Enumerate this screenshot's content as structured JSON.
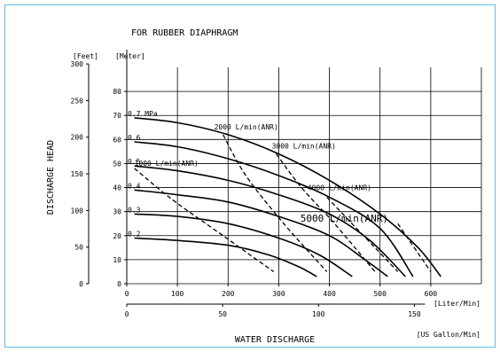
{
  "chart_data": {
    "type": "line",
    "title": "FOR RUBBER DIAPHRAGM",
    "xlabel": "WATER  DISCHARGE",
    "ylabel": "DISCHARGE  HEAD",
    "x_primary_unit": "[Liter/Min]",
    "x_secondary_unit": "[US Gallon/Min]",
    "y_feet_unit": "[Feet]",
    "y_meter_unit": "[Meter]",
    "x_primary_ticks": [
      "0",
      "100",
      "200",
      "300",
      "400",
      "500",
      "600"
    ],
    "x_primary_tick_values": [
      0,
      100,
      200,
      300,
      400,
      500,
      600
    ],
    "x_secondary_ticks": [
      "0",
      "50",
      "100",
      "150"
    ],
    "x_secondary_tick_values": [
      0,
      50,
      100,
      150
    ],
    "y_meter_ticks": [
      "0",
      "10",
      "20",
      "30",
      "40",
      "50",
      "60",
      "70",
      "80"
    ],
    "y_meter_tick_values": [
      0,
      10,
      20,
      30,
      40,
      50,
      60,
      70,
      80
    ],
    "y_feet_ticks": [
      "0",
      "50",
      "100",
      "150",
      "200",
      "250",
      "300"
    ],
    "y_feet_tick_values": [
      0,
      50,
      100,
      150,
      200,
      250,
      300
    ],
    "xlim": [
      0,
      700
    ],
    "ylim_meter": [
      0,
      90
    ],
    "grid": true,
    "pressure_curves": [
      {
        "name": "0.7 MPa",
        "points": [
          [
            15,
            69
          ],
          [
            100,
            67
          ],
          [
            200,
            62
          ],
          [
            300,
            54
          ],
          [
            400,
            43
          ],
          [
            500,
            29
          ],
          [
            575,
            15
          ],
          [
            620,
            3
          ]
        ]
      },
      {
        "name": "0.6",
        "points": [
          [
            15,
            59
          ],
          [
            100,
            57
          ],
          [
            200,
            52
          ],
          [
            300,
            45
          ],
          [
            400,
            36
          ],
          [
            500,
            23
          ],
          [
            565,
            3
          ]
        ]
      },
      {
        "name": "0.5",
        "points": [
          [
            15,
            49
          ],
          [
            100,
            47
          ],
          [
            200,
            43
          ],
          [
            300,
            37
          ],
          [
            400,
            29
          ],
          [
            480,
            18
          ],
          [
            550,
            3
          ]
        ]
      },
      {
        "name": "0.4",
        "points": [
          [
            15,
            39
          ],
          [
            100,
            37
          ],
          [
            200,
            34
          ],
          [
            300,
            28
          ],
          [
            400,
            20
          ],
          [
            470,
            10
          ],
          [
            515,
            3
          ]
        ]
      },
      {
        "name": "0.3",
        "points": [
          [
            15,
            29
          ],
          [
            100,
            28
          ],
          [
            200,
            25
          ],
          [
            300,
            19
          ],
          [
            380,
            12
          ],
          [
            445,
            3
          ]
        ]
      },
      {
        "name": "0.2",
        "points": [
          [
            15,
            19
          ],
          [
            100,
            18
          ],
          [
            200,
            16
          ],
          [
            280,
            12
          ],
          [
            340,
            7
          ],
          [
            375,
            3
          ]
        ]
      }
    ],
    "air_consumption_lines": [
      {
        "name": "1000 L/min(ANR)",
        "points": [
          [
            15,
            48
          ],
          [
            90,
            35
          ],
          [
            190,
            20
          ],
          [
            290,
            5
          ]
        ]
      },
      {
        "name": "2000 L/min(ANR)",
        "points": [
          [
            190,
            62
          ],
          [
            235,
            45
          ],
          [
            310,
            25
          ],
          [
            395,
            5
          ]
        ]
      },
      {
        "name": "3000 L/min(ANR)",
        "points": [
          [
            295,
            54
          ],
          [
            345,
            40
          ],
          [
            410,
            25
          ],
          [
            490,
            5
          ]
        ]
      },
      {
        "name": "4000 L/min(ANR)",
        "points": [
          [
            395,
            36
          ],
          [
            440,
            26
          ],
          [
            490,
            15
          ],
          [
            535,
            5
          ]
        ]
      },
      {
        "name": "5000 L/min(ANR)",
        "points": [
          [
            535,
            25
          ],
          [
            600,
            5
          ]
        ]
      }
    ],
    "curve_labels": [
      "0.7 MPa",
      "0.6",
      "0.5",
      "0.4",
      "0.3",
      "0.2"
    ],
    "air_labels": [
      "1000 L/min(ANR)",
      "2000 L/min(ANR)",
      "3000 L/min(ANR)",
      "4000 L/min(ANR)",
      "5000 L/min(ANR)"
    ]
  }
}
